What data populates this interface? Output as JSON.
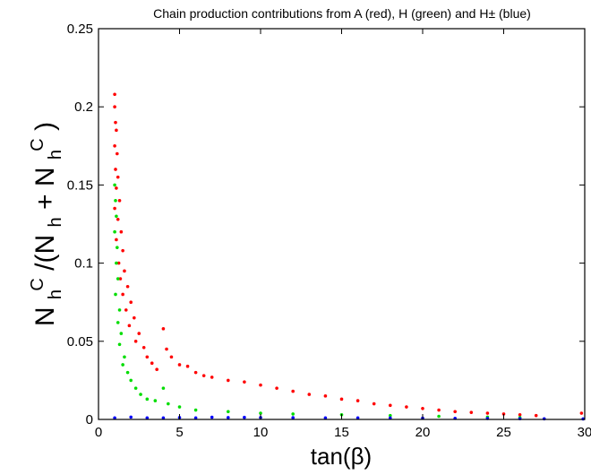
{
  "chart_data": {
    "type": "scatter",
    "title": "Chain production contributions from A (red), H (green) and H± (blue)",
    "xlabel": "tan(β)",
    "ylabel": {
      "base": "N",
      "sub_h": "h",
      "sup_C": "C",
      "open": "/(N",
      "plus": " + N",
      "close": ")"
    },
    "xlim": [
      0,
      30
    ],
    "ylim": [
      0,
      0.25
    ],
    "xticks": [
      0,
      5,
      10,
      15,
      20,
      25,
      30
    ],
    "yticks": [
      0,
      0.05,
      0.1,
      0.15,
      0.2,
      0.25
    ],
    "xtick_labels": [
      "0",
      "5",
      "10",
      "15",
      "20",
      "25",
      "30"
    ],
    "ytick_labels": [
      "0",
      "0.05",
      "0.1",
      "0.15",
      "0.2",
      "0.25"
    ],
    "grid": false,
    "legend": "none",
    "series": [
      {
        "color": "#ff0000",
        "points": [
          [
            1.0,
            0.208
          ],
          [
            1.0,
            0.2
          ],
          [
            1.05,
            0.19
          ],
          [
            1.1,
            0.185
          ],
          [
            1.0,
            0.175
          ],
          [
            1.15,
            0.17
          ],
          [
            1.05,
            0.16
          ],
          [
            1.2,
            0.155
          ],
          [
            1.1,
            0.148
          ],
          [
            1.3,
            0.14
          ],
          [
            1.0,
            0.135
          ],
          [
            1.2,
            0.128
          ],
          [
            1.4,
            0.12
          ],
          [
            1.1,
            0.115
          ],
          [
            1.5,
            0.108
          ],
          [
            1.25,
            0.1
          ],
          [
            1.6,
            0.095
          ],
          [
            1.35,
            0.09
          ],
          [
            1.8,
            0.085
          ],
          [
            1.5,
            0.08
          ],
          [
            2.0,
            0.075
          ],
          [
            1.7,
            0.07
          ],
          [
            2.2,
            0.065
          ],
          [
            1.9,
            0.06
          ],
          [
            2.5,
            0.055
          ],
          [
            2.3,
            0.05
          ],
          [
            2.8,
            0.046
          ],
          [
            3.0,
            0.04
          ],
          [
            3.3,
            0.036
          ],
          [
            3.6,
            0.032
          ],
          [
            4.0,
            0.058
          ],
          [
            4.2,
            0.045
          ],
          [
            4.5,
            0.04
          ],
          [
            5.0,
            0.035
          ],
          [
            5.5,
            0.034
          ],
          [
            6.0,
            0.03
          ],
          [
            6.5,
            0.028
          ],
          [
            7.0,
            0.027
          ],
          [
            8.0,
            0.025
          ],
          [
            9.0,
            0.024
          ],
          [
            10.0,
            0.022
          ],
          [
            11.0,
            0.02
          ],
          [
            12.0,
            0.018
          ],
          [
            13.0,
            0.016
          ],
          [
            14.0,
            0.015
          ],
          [
            15.0,
            0.013
          ],
          [
            16.0,
            0.012
          ],
          [
            17.0,
            0.01
          ],
          [
            18.0,
            0.009
          ],
          [
            19.0,
            0.008
          ],
          [
            20.0,
            0.007
          ],
          [
            21.0,
            0.006
          ],
          [
            22.0,
            0.005
          ],
          [
            23.0,
            0.0045
          ],
          [
            24.0,
            0.004
          ],
          [
            25.0,
            0.0035
          ],
          [
            26.0,
            0.003
          ],
          [
            27.0,
            0.0025
          ],
          [
            29.8,
            0.004
          ]
        ]
      },
      {
        "color": "#00dd00",
        "points": [
          [
            1.0,
            0.15
          ],
          [
            1.05,
            0.14
          ],
          [
            1.1,
            0.13
          ],
          [
            1.0,
            0.12
          ],
          [
            1.15,
            0.11
          ],
          [
            1.1,
            0.1
          ],
          [
            1.2,
            0.09
          ],
          [
            1.05,
            0.08
          ],
          [
            1.3,
            0.07
          ],
          [
            1.2,
            0.062
          ],
          [
            1.4,
            0.055
          ],
          [
            1.3,
            0.048
          ],
          [
            1.6,
            0.04
          ],
          [
            1.5,
            0.035
          ],
          [
            1.8,
            0.03
          ],
          [
            2.0,
            0.025
          ],
          [
            2.3,
            0.02
          ],
          [
            2.6,
            0.016
          ],
          [
            3.0,
            0.013
          ],
          [
            3.5,
            0.012
          ],
          [
            4.0,
            0.02
          ],
          [
            4.3,
            0.01
          ],
          [
            5.0,
            0.008
          ],
          [
            6.0,
            0.006
          ],
          [
            8.0,
            0.005
          ],
          [
            10.0,
            0.004
          ],
          [
            12.0,
            0.0035
          ],
          [
            15.0,
            0.003
          ],
          [
            18.0,
            0.0025
          ],
          [
            21.0,
            0.002
          ],
          [
            24.0,
            0.0015
          ],
          [
            26.0,
            0.0012
          ]
        ]
      },
      {
        "color": "#0000ff",
        "points": [
          [
            1.0,
            0.001
          ],
          [
            2.0,
            0.0015
          ],
          [
            3.0,
            0.001
          ],
          [
            4.0,
            0.001
          ],
          [
            5.0,
            0.0012
          ],
          [
            6.0,
            0.001
          ],
          [
            7.0,
            0.0014
          ],
          [
            8.0,
            0.0012
          ],
          [
            9.0,
            0.0013
          ],
          [
            10.0,
            0.0012
          ],
          [
            12.0,
            0.0011
          ],
          [
            14.0,
            0.001
          ],
          [
            16.0,
            0.001
          ],
          [
            18.0,
            0.0009
          ],
          [
            20.0,
            0.0008
          ],
          [
            22.0,
            0.0007
          ],
          [
            24.0,
            0.0006
          ],
          [
            26.0,
            0.0005
          ],
          [
            27.5,
            0.0004
          ],
          [
            29.9,
            0.0003
          ]
        ]
      }
    ]
  }
}
